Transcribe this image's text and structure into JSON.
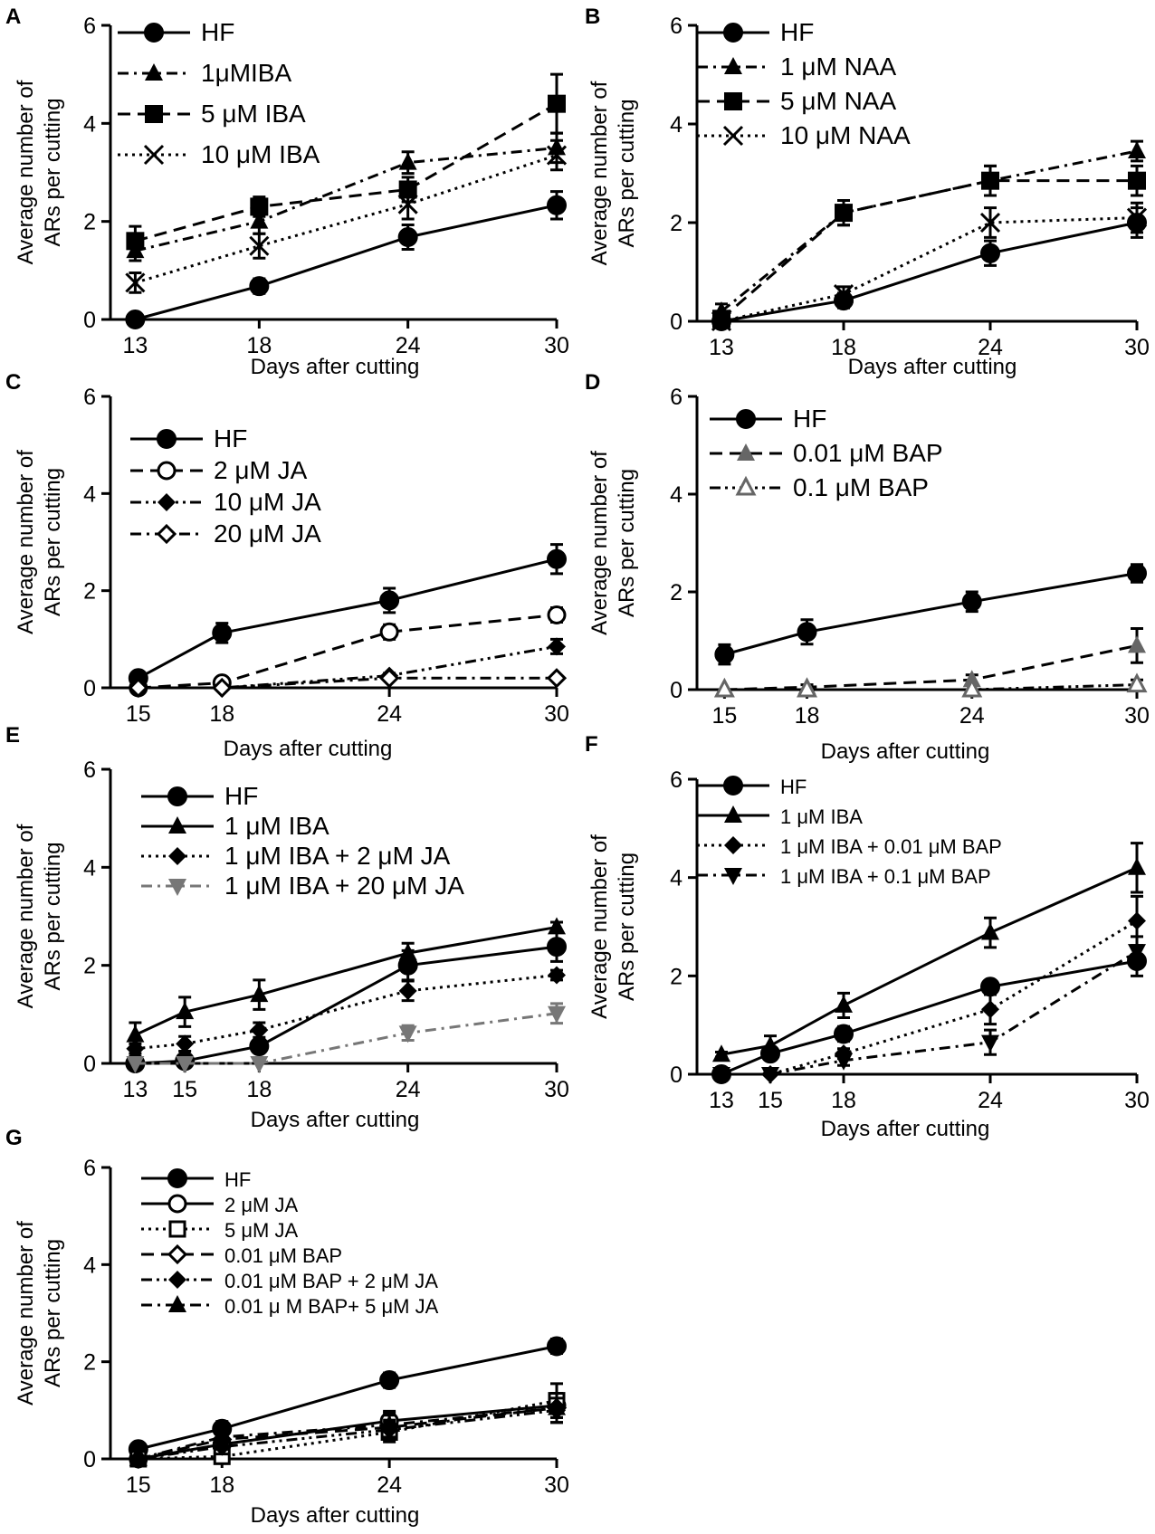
{
  "chart_data": [
    {
      "type": "line",
      "panel": "A",
      "ylabel": "Average number of ARs  per cutting",
      "xlabel": "Days after cutting",
      "ylim": [
        0,
        6
      ],
      "yticks": [
        "0",
        "2",
        "4",
        "6"
      ],
      "x": [
        13,
        18,
        24,
        30
      ],
      "xtick_labels": [
        "13",
        "18",
        "24",
        "30"
      ],
      "legend_position": "top-left",
      "series": [
        {
          "name": "HF",
          "values": [
            0,
            0.68,
            1.68,
            2.33
          ],
          "errors": [
            0,
            0.15,
            0.25,
            0.28
          ],
          "marker": "circle",
          "dash": "solid",
          "color": "#000000"
        },
        {
          "name": "1μMIBA",
          "values": [
            1.4,
            2.0,
            3.2,
            3.5
          ],
          "errors": [
            0.2,
            0.25,
            0.22,
            0.3
          ],
          "marker": "triangle",
          "dash": "dashdot",
          "color": "#000000"
        },
        {
          "name": "5 μM IBA",
          "values": [
            1.6,
            2.3,
            2.65,
            4.4
          ],
          "errors": [
            0.3,
            0.2,
            0.25,
            0.6
          ],
          "marker": "square",
          "dash": "dashed",
          "color": "#000000"
        },
        {
          "name": "10 μM IBA",
          "values": [
            0.75,
            1.5,
            2.35,
            3.35
          ],
          "errors": [
            0.2,
            0.25,
            0.3,
            0.3
          ],
          "marker": "x",
          "dash": "dotted",
          "color": "#000000"
        }
      ]
    },
    {
      "type": "line",
      "panel": "B",
      "ylabel": "Average number of ARs per cutting",
      "xlabel": "Days after cutting",
      "ylim": [
        0,
        6
      ],
      "yticks": [
        "0",
        "2",
        "4",
        "6"
      ],
      "x": [
        13,
        18,
        24,
        30
      ],
      "xtick_labels": [
        "13",
        "18",
        "24",
        "30"
      ],
      "legend_position": "top-left",
      "series": [
        {
          "name": "HF",
          "values": [
            0,
            0.42,
            1.38,
            2.0
          ],
          "errors": [
            0,
            0.15,
            0.25,
            0.3
          ],
          "marker": "circle",
          "dash": "solid",
          "color": "#000000"
        },
        {
          "name": "1 μM NAA",
          "values": [
            0.2,
            2.2,
            2.85,
            3.45
          ],
          "errors": [
            0.15,
            0.25,
            0.3,
            0.2
          ],
          "marker": "triangle",
          "dash": "dashdot",
          "color": "#000000"
        },
        {
          "name": "5 μM NAA",
          "values": [
            0.05,
            2.2,
            2.85,
            2.85
          ],
          "errors": [
            0.05,
            0.25,
            0.3,
            0.3
          ],
          "marker": "square",
          "dash": "dashed",
          "color": "#000000"
        },
        {
          "name": "10 μM NAA",
          "values": [
            0,
            0.55,
            2.0,
            2.1
          ],
          "errors": [
            0,
            0.15,
            0.3,
            0.3
          ],
          "marker": "x",
          "dash": "dotted",
          "color": "#000000"
        }
      ]
    },
    {
      "type": "line",
      "panel": "C",
      "ylabel": "Average number of ARs per cutting",
      "xlabel": "Days after cutting",
      "ylim": [
        0,
        6
      ],
      "yticks": [
        "0",
        "2",
        "4",
        "6"
      ],
      "x": [
        15,
        18,
        24,
        30
      ],
      "xtick_labels": [
        "15",
        "18",
        "24",
        "30"
      ],
      "legend_position": "top-left",
      "series": [
        {
          "name": "HF",
          "values": [
            0.2,
            1.13,
            1.8,
            2.65
          ],
          "errors": [
            0.05,
            0.2,
            0.25,
            0.3
          ],
          "marker": "circle",
          "dash": "solid",
          "color": "#000000"
        },
        {
          "name": "2 μM JA",
          "values": [
            0,
            0.1,
            1.15,
            1.5
          ],
          "errors": [
            0,
            0.05,
            0.15,
            0.15
          ],
          "marker": "circle-open",
          "dash": "dashed",
          "color": "#000000"
        },
        {
          "name": "10 μM JA",
          "values": [
            0,
            0,
            0.25,
            0.85
          ],
          "errors": [
            0,
            0,
            0.05,
            0.15
          ],
          "marker": "diamond",
          "dash": "dashdotdot",
          "color": "#000000"
        },
        {
          "name": "20 μM JA",
          "values": [
            0,
            0,
            0.2,
            0.2
          ],
          "errors": [
            0,
            0,
            0.05,
            0.05
          ],
          "marker": "diamond-open",
          "dash": "dashdot",
          "color": "#000000"
        }
      ]
    },
    {
      "type": "line",
      "panel": "D",
      "ylabel": "Average number of ARs per cutting",
      "xlabel": "Days after cutting",
      "ylim": [
        0,
        6
      ],
      "yticks": [
        "0",
        "2",
        "4",
        "6"
      ],
      "x": [
        15,
        18,
        24,
        30
      ],
      "xtick_labels": [
        "15",
        "18",
        "24",
        "30"
      ],
      "legend_position": "top-left",
      "series": [
        {
          "name": "HF",
          "values": [
            0.72,
            1.18,
            1.8,
            2.38
          ],
          "errors": [
            0.2,
            0.25,
            0.2,
            0.18
          ],
          "marker": "circle",
          "dash": "solid",
          "color": "#000000"
        },
        {
          "name": "0.01 μM BAP",
          "values": [
            0,
            0.05,
            0.2,
            0.9
          ],
          "errors": [
            0,
            0.05,
            0.1,
            0.35
          ],
          "marker": "triangle-gray",
          "dash": "dashed",
          "color": "#000000"
        },
        {
          "name": "0.1 μM BAP",
          "values": [
            0,
            0,
            0,
            0.1
          ],
          "errors": [
            0,
            0,
            0,
            0.1
          ],
          "marker": "triangle-open",
          "dash": "dashdotdot",
          "color": "#000000"
        }
      ]
    },
    {
      "type": "line",
      "panel": "E",
      "ylabel": "Average number of ARs per cutting",
      "xlabel": "Days after cutting",
      "ylim": [
        0,
        6
      ],
      "yticks": [
        "0",
        "2",
        "4",
        "6"
      ],
      "x": [
        13,
        15,
        18,
        24,
        30
      ],
      "xtick_labels": [
        "13",
        "15",
        "18",
        "24",
        "30"
      ],
      "legend_position": "top-left",
      "series": [
        {
          "name": "HF",
          "values": [
            0,
            0.05,
            0.35,
            2.0,
            2.38
          ],
          "errors": [
            0,
            0.05,
            0.1,
            0.3,
            0.3
          ],
          "marker": "circle",
          "dash": "solid",
          "color": "#000000"
        },
        {
          "name": "1 μM IBA",
          "values": [
            0.58,
            1.05,
            1.4,
            2.25,
            2.78
          ],
          "errors": [
            0.25,
            0.3,
            0.3,
            0.2,
            0.1
          ],
          "marker": "triangle",
          "dash": "solid",
          "color": "#000000"
        },
        {
          "name": "1 μM IBA + 2 μM JA",
          "values": [
            0.3,
            0.4,
            0.68,
            1.48,
            1.8
          ],
          "errors": [
            0.1,
            0.15,
            0.15,
            0.2,
            0.1
          ],
          "marker": "diamond",
          "dash": "dotted",
          "color": "#000000"
        },
        {
          "name": "1 μM IBA + 20 μM JA",
          "values": [
            0,
            0,
            0,
            0.62,
            1.02
          ],
          "errors": [
            0,
            0,
            0,
            0.15,
            0.2
          ],
          "marker": "triangle-down-gray",
          "dash": "dashdot",
          "color": "#777777"
        }
      ]
    },
    {
      "type": "line",
      "panel": "F",
      "ylabel": "Average number of ARs per cutting",
      "xlabel": "Days after cutting",
      "ylim": [
        0,
        6
      ],
      "yticks": [
        "0",
        "2",
        "4",
        "6"
      ],
      "x": [
        13,
        15,
        18,
        24,
        30
      ],
      "xtick_labels": [
        "13",
        "15",
        "18",
        "24",
        "30"
      ],
      "legend_position": "top-left",
      "series": [
        {
          "name": "HF",
          "values": [
            0,
            0.42,
            0.82,
            1.78,
            2.3
          ],
          "errors": [
            0,
            0.1,
            0.15,
            0.1,
            0.3
          ],
          "marker": "circle",
          "dash": "solid",
          "color": "#000000"
        },
        {
          "name": "1 μM IBA",
          "values": [
            0.4,
            0.58,
            1.4,
            2.88,
            4.2
          ],
          "errors": [
            0.05,
            0.2,
            0.25,
            0.3,
            0.5
          ],
          "marker": "triangle",
          "dash": "solid",
          "color": "#000000"
        },
        {
          "name": "1 μM IBA + 0.01 μM BAP",
          "values": [
            0,
            0,
            0.42,
            1.32,
            3.12
          ],
          "errors": [
            0,
            0,
            0.1,
            0.3,
            0.5
          ],
          "marker": "diamond",
          "dash": "dotted",
          "color": "#000000"
        },
        {
          "name": "1 μM IBA + 0.1 μM BAP",
          "values": [
            0,
            0,
            0.28,
            0.65,
            2.5
          ],
          "errors": [
            0,
            0,
            0.1,
            0.25,
            0.3
          ],
          "marker": "triangle-down",
          "dash": "dashdot",
          "color": "#000000"
        }
      ]
    },
    {
      "type": "line",
      "panel": "G",
      "ylabel": "Average number of ARs per cutting",
      "xlabel": "Days after cutting",
      "ylim": [
        0,
        6
      ],
      "yticks": [
        "0",
        "2",
        "4",
        "6"
      ],
      "x": [
        15,
        18,
        24,
        30
      ],
      "xtick_labels": [
        "15",
        "18",
        "24",
        "30"
      ],
      "legend_position": "top-left",
      "series": [
        {
          "name": "HF",
          "values": [
            0.2,
            0.62,
            1.62,
            2.32
          ],
          "errors": [
            0.05,
            0.15,
            0.15,
            0.15
          ],
          "marker": "circle",
          "dash": "solid",
          "color": "#000000"
        },
        {
          "name": "2 μM JA",
          "values": [
            0,
            0.3,
            0.78,
            1.1
          ],
          "errors": [
            0,
            0.15,
            0.2,
            0.25
          ],
          "marker": "circle-open",
          "dash": "solid",
          "color": "#000000"
        },
        {
          "name": "5 μM JA",
          "values": [
            0,
            0.05,
            0.55,
            1.2
          ],
          "errors": [
            0,
            0.05,
            0.2,
            0.35
          ],
          "marker": "square-open",
          "dash": "dotted",
          "color": "#000000"
        },
        {
          "name": "0.01 μM BAP",
          "values": [
            0,
            0.4,
            0.65,
            1.05
          ],
          "errors": [
            0,
            0.2,
            0.25,
            0.3
          ],
          "marker": "diamond-open",
          "dash": "dashed",
          "color": "#000000"
        },
        {
          "name": "0.01 μM BAP + 2 μM JA",
          "values": [
            0,
            0.25,
            0.6,
            1.0
          ],
          "errors": [
            0,
            0.15,
            0.2,
            0.25
          ],
          "marker": "diamond",
          "dash": "dashdotdot",
          "color": "#000000"
        },
        {
          "name": "0.01 μ M BAP+ 5 μM JA",
          "values": [
            0,
            0.45,
            0.7,
            1.05
          ],
          "errors": [
            0,
            0.2,
            0.25,
            0.3
          ],
          "marker": "triangle",
          "dash": "dashdot",
          "color": "#000000"
        }
      ]
    }
  ]
}
